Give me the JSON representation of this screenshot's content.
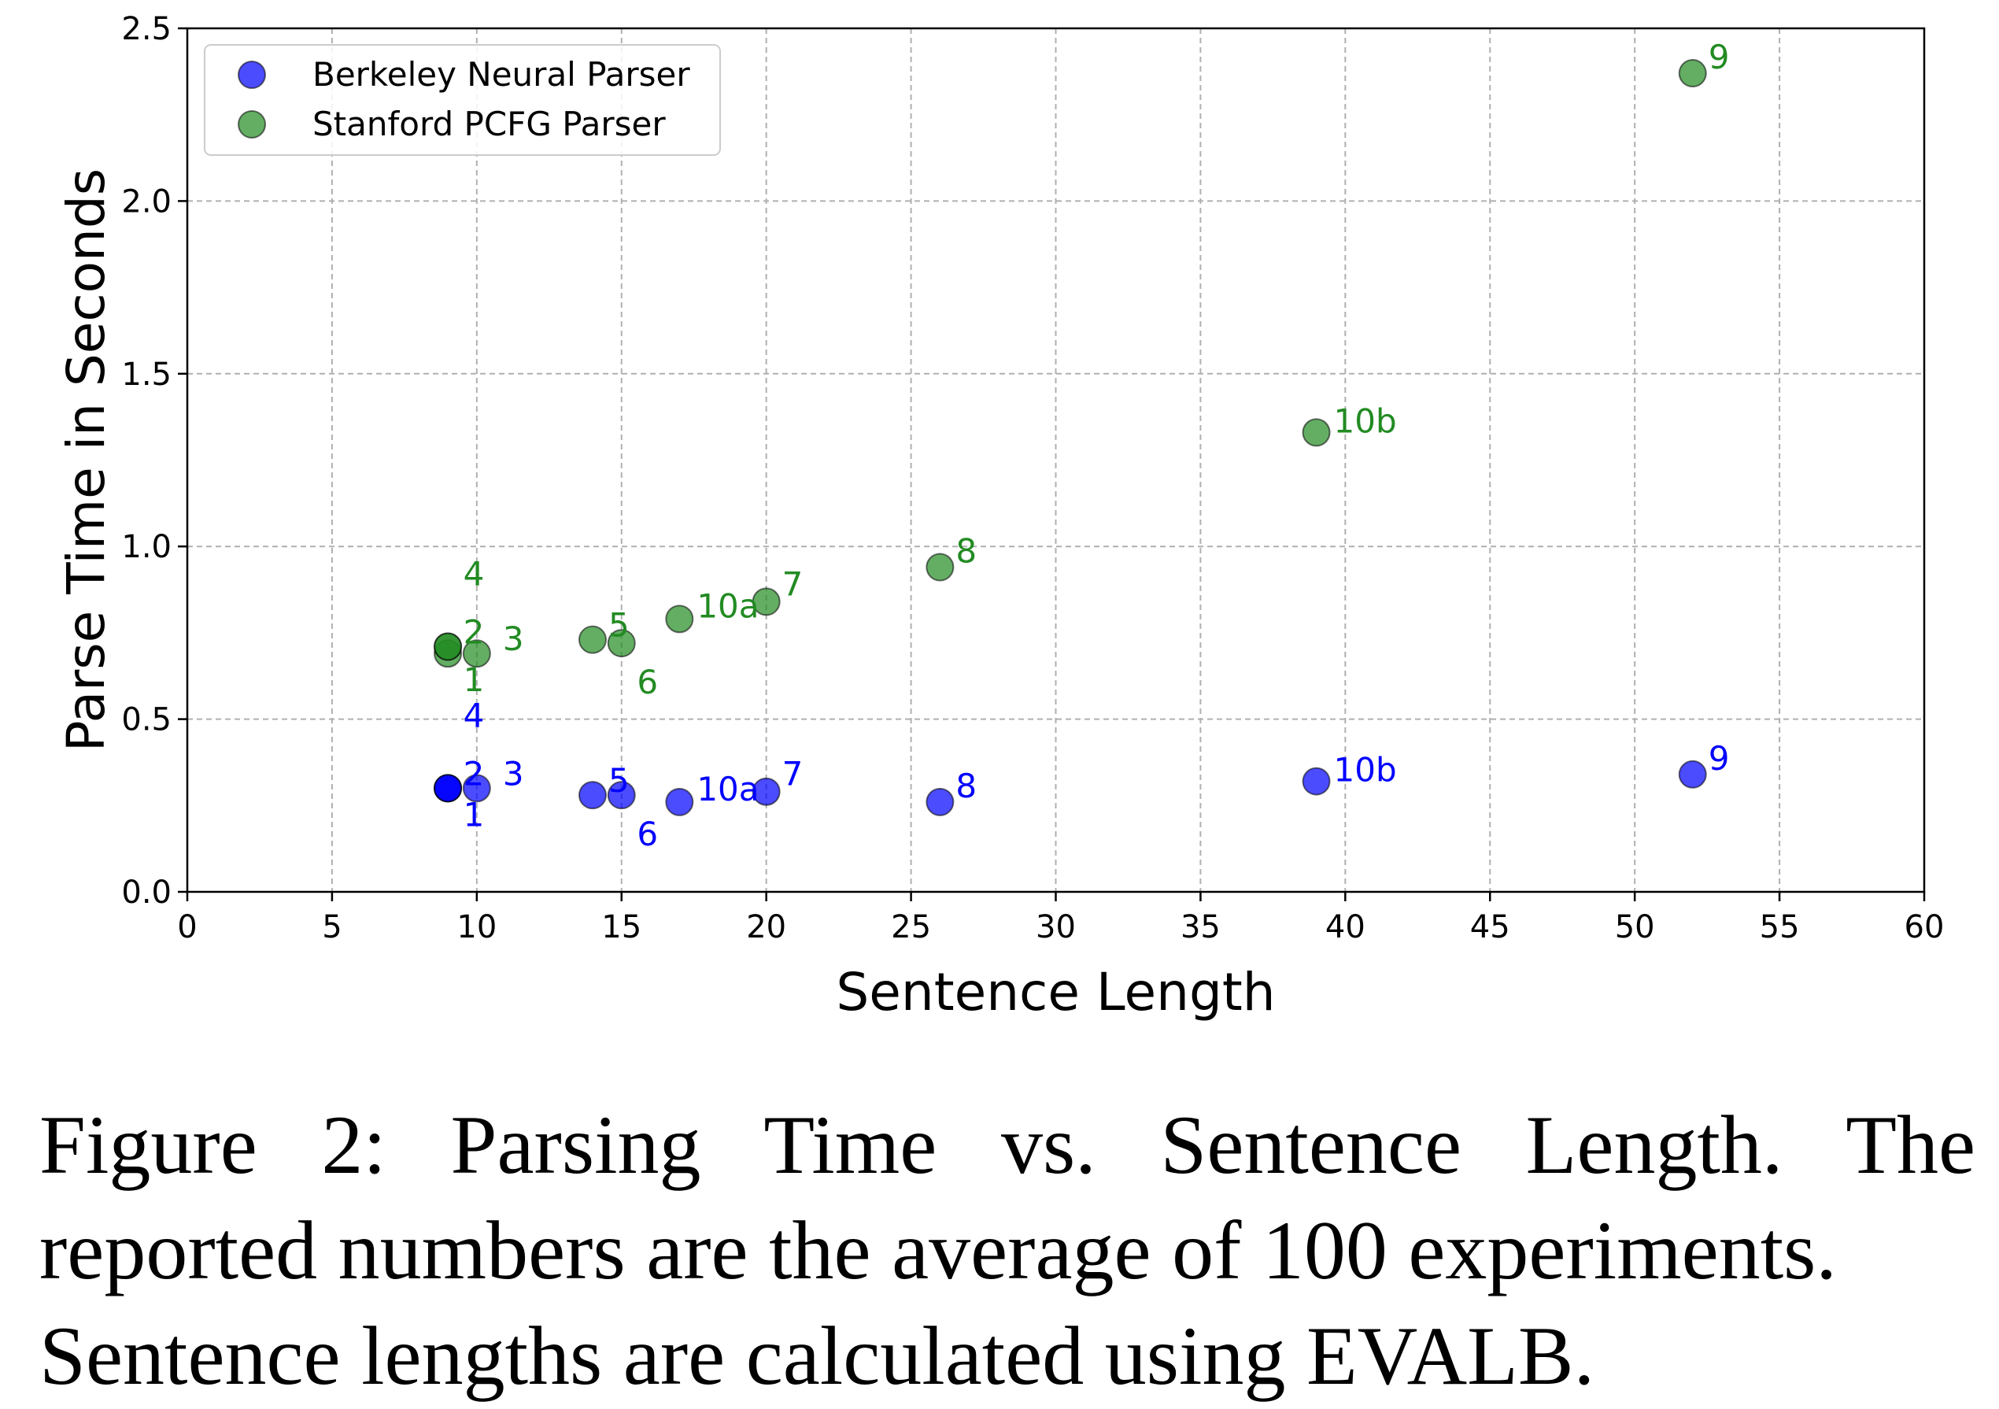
{
  "chart_data": {
    "type": "scatter",
    "xlabel": "Sentence Length",
    "ylabel": "Parse Time in Seconds",
    "xlim": [
      0,
      60
    ],
    "ylim": [
      0,
      2.5
    ],
    "xticks": [
      "0",
      "5",
      "10",
      "15",
      "20",
      "25",
      "30",
      "35",
      "40",
      "45",
      "50",
      "55",
      "60"
    ],
    "yticks": [
      "0.0",
      "0.5",
      "1.0",
      "1.5",
      "2.0",
      "2.5"
    ],
    "grid": true,
    "legend_position": "top-left",
    "series": [
      {
        "name": "Berkeley Neural Parser",
        "color": "#0000ff",
        "points": [
          {
            "label": "1",
            "x": 9,
            "y": 0.3
          },
          {
            "label": "2",
            "x": 9,
            "y": 0.3
          },
          {
            "label": "3",
            "x": 10,
            "y": 0.3
          },
          {
            "label": "4",
            "x": 9,
            "y": 0.3
          },
          {
            "label": "5",
            "x": 14,
            "y": 0.28
          },
          {
            "label": "6",
            "x": 15,
            "y": 0.28
          },
          {
            "label": "10a",
            "x": 17,
            "y": 0.26
          },
          {
            "label": "7",
            "x": 20,
            "y": 0.29
          },
          {
            "label": "8",
            "x": 26,
            "y": 0.26
          },
          {
            "label": "10b",
            "x": 39,
            "y": 0.32
          },
          {
            "label": "9",
            "x": 52,
            "y": 0.34
          }
        ]
      },
      {
        "name": "Stanford PCFG Parser",
        "color": "#228b22",
        "points": [
          {
            "label": "1",
            "x": 9,
            "y": 0.69
          },
          {
            "label": "2",
            "x": 9,
            "y": 0.71
          },
          {
            "label": "3",
            "x": 10,
            "y": 0.69
          },
          {
            "label": "4",
            "x": 9,
            "y": 0.71
          },
          {
            "label": "5",
            "x": 14,
            "y": 0.73
          },
          {
            "label": "6",
            "x": 15,
            "y": 0.72
          },
          {
            "label": "10a",
            "x": 17,
            "y": 0.79
          },
          {
            "label": "7",
            "x": 20,
            "y": 0.84
          },
          {
            "label": "8",
            "x": 26,
            "y": 0.94
          },
          {
            "label": "10b",
            "x": 39,
            "y": 1.33
          },
          {
            "label": "9",
            "x": 52,
            "y": 2.37
          }
        ]
      }
    ]
  },
  "caption": {
    "line1": "Figure 2: Parsing Time vs. Sentence Length. The",
    "line2": "reported numbers are the average of 100 experiments.",
    "line3": "Sentence lengths are calculated using EVALB."
  }
}
